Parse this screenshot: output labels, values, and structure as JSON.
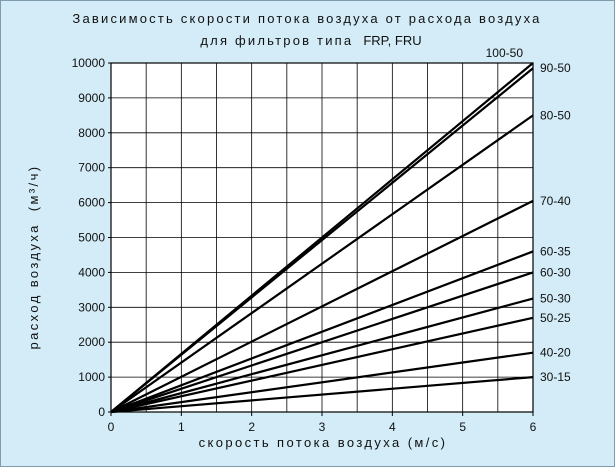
{
  "chart_data": {
    "type": "line",
    "title": "Зависимость скорости потока воздуха от расхода воздуха",
    "subtitle_prefix": "для фильтров типа",
    "subtitle_suffix": "FRP, FRU",
    "xlabel": "скорость потока воздуха (м/с)",
    "ylabel_text": "расход воздуха",
    "ylabel_unit": "(м³/ч)",
    "xlim": [
      0,
      6
    ],
    "ylim": [
      0,
      10000
    ],
    "x_ticks": [
      0,
      1,
      2,
      3,
      4,
      5,
      6
    ],
    "y_ticks": [
      0,
      1000,
      2000,
      3000,
      4000,
      5000,
      6000,
      7000,
      8000,
      9000,
      10000
    ],
    "grid": true,
    "series": [
      {
        "name": "100-50",
        "x": [
          0,
          6
        ],
        "values": [
          0,
          10000
        ]
      },
      {
        "name": "90-50",
        "x": [
          0,
          6
        ],
        "values": [
          0,
          9850
        ]
      },
      {
        "name": "80-50",
        "x": [
          0,
          6
        ],
        "values": [
          0,
          8500
        ]
      },
      {
        "name": "70-40",
        "x": [
          0,
          6
        ],
        "values": [
          0,
          6050
        ]
      },
      {
        "name": "60-35",
        "x": [
          0,
          6
        ],
        "values": [
          0,
          4600
        ]
      },
      {
        "name": "60-30",
        "x": [
          0,
          6
        ],
        "values": [
          0,
          4000
        ]
      },
      {
        "name": "50-30",
        "x": [
          0,
          6
        ],
        "values": [
          0,
          3250
        ]
      },
      {
        "name": "50-25",
        "x": [
          0,
          6
        ],
        "values": [
          0,
          2700
        ]
      },
      {
        "name": "40-20",
        "x": [
          0,
          6
        ],
        "values": [
          0,
          1700
        ]
      },
      {
        "name": "30-15",
        "x": [
          0,
          6
        ],
        "values": [
          0,
          1000
        ]
      }
    ]
  },
  "colors": {
    "background": "#d3ecf7",
    "plot_area": "#ffffff",
    "grid": "#000000",
    "lines": "#000000"
  }
}
